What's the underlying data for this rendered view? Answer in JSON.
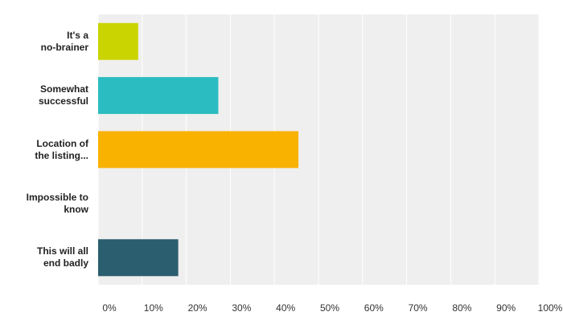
{
  "chart_data": {
    "type": "hbar",
    "categories": [
      "It's a\nno-brainer",
      "Somewhat\nsuccessful",
      "Location of\nthe listing...",
      "Impossible to\nknow",
      "This will all\nend badly"
    ],
    "values": [
      9.09,
      27.27,
      45.45,
      0,
      18.18
    ],
    "colors": [
      "#c9d400",
      "#2bbcc1",
      "#f9b200",
      "#999999",
      "#2b5e6e"
    ],
    "xlim": [
      0,
      100
    ],
    "xticks": [
      {
        "value": 0,
        "label": "0%"
      },
      {
        "value": 10,
        "label": "10%"
      },
      {
        "value": 20,
        "label": "20%"
      },
      {
        "value": 30,
        "label": "30%"
      },
      {
        "value": 40,
        "label": "40%"
      },
      {
        "value": 50,
        "label": "50%"
      },
      {
        "value": 60,
        "label": "60%"
      },
      {
        "value": 70,
        "label": "70%"
      },
      {
        "value": 80,
        "label": "80%"
      },
      {
        "value": 90,
        "label": "90%"
      },
      {
        "value": 100,
        "label": "100%"
      }
    ],
    "grid": true
  }
}
